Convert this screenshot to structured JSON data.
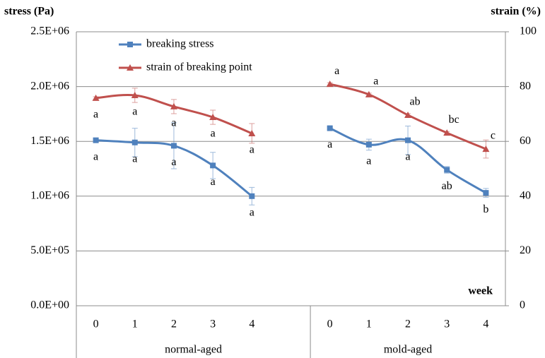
{
  "chart_data": {
    "type": "line",
    "y_label": "stress (Pa)",
    "y2_label": "strain (%)",
    "x_label": "week",
    "categories": [
      "0",
      "1",
      "2",
      "3",
      "4",
      null,
      "0",
      "1",
      "2",
      "3",
      "4"
    ],
    "groups": [
      {
        "label": "normal-aged",
        "span": [
          0,
          5
        ]
      },
      {
        "label": "mold-aged",
        "span": [
          6,
          10
        ]
      }
    ],
    "ylim": [
      0,
      2500000
    ],
    "yticks": [
      {
        "value": 0,
        "label": "0.0E+00"
      },
      {
        "value": 500000,
        "label": "5.0E+05"
      },
      {
        "value": 1000000,
        "label": "1.0E+06"
      },
      {
        "value": 1500000,
        "label": "1.5E+06"
      },
      {
        "value": 2000000,
        "label": "2.0E+06"
      },
      {
        "value": 2500000,
        "label": "2.5E+06"
      }
    ],
    "y2lim": [
      0,
      100
    ],
    "y2ticks": [
      0,
      20,
      40,
      60,
      80,
      100
    ],
    "grid": true,
    "series": [
      {
        "name": "breaking stress",
        "color": "#4f81bd",
        "marker": "square",
        "axis": "y",
        "values": [
          1510000,
          1490000,
          1460000,
          1280000,
          1000000,
          null,
          1620000,
          1470000,
          1510000,
          1240000,
          1030000
        ],
        "errors": [
          20000,
          130000,
          210000,
          120000,
          80000,
          null,
          10000,
          50000,
          130000,
          30000,
          40000
        ],
        "letters": [
          "a",
          "a",
          "a",
          "a",
          "a",
          null,
          "a",
          "a",
          "a",
          "ab",
          "b"
        ]
      },
      {
        "name": "strain of breaking point",
        "color": "#c0504d",
        "marker": "triangle",
        "axis": "y2",
        "values": [
          75.8,
          76.8,
          72.7,
          68.8,
          62.9,
          null,
          80.9,
          77.1,
          69.6,
          63.1,
          57.2
        ],
        "errors": [
          0.5,
          2.6,
          2.6,
          2.6,
          3.6,
          null,
          0.5,
          0.5,
          0.5,
          0.5,
          3.3
        ],
        "letters": [
          "a",
          "a",
          "a",
          "a",
          "a",
          null,
          "a",
          "a",
          "ab",
          "bc",
          "c"
        ]
      }
    ]
  }
}
